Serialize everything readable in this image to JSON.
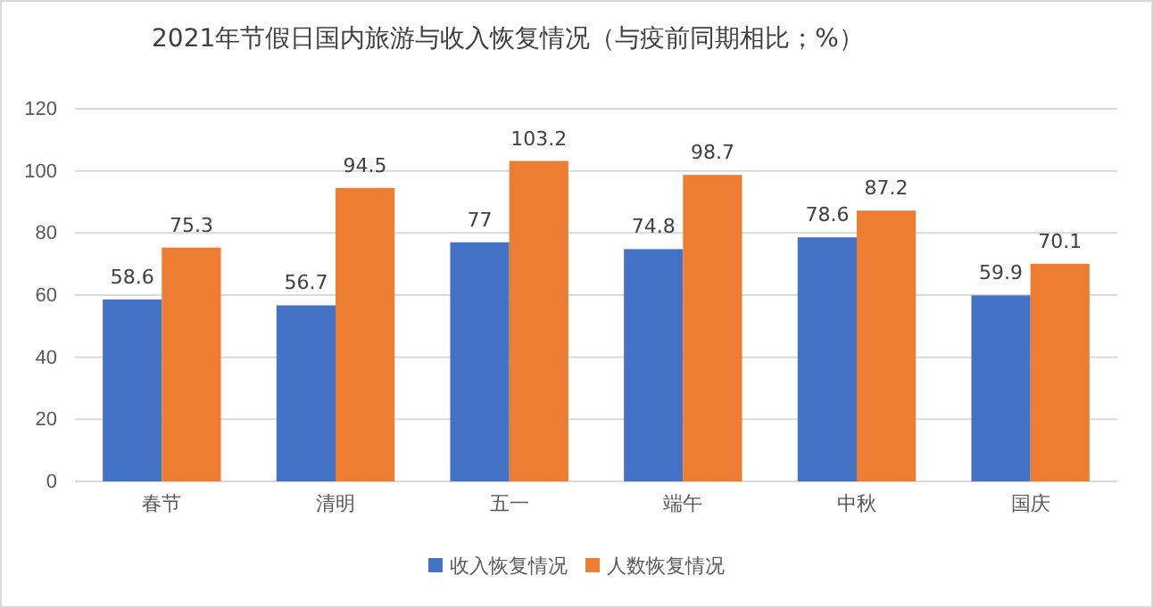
{
  "chart_data": {
    "type": "bar",
    "title": "2021年节假日国内旅游与收入恢复情况（与疫前同期相比；%）",
    "categories": [
      "春节",
      "清明",
      "五一",
      "端午",
      "中秋",
      "国庆"
    ],
    "series": [
      {
        "name": "收入恢复情况",
        "color": "#4472c4",
        "values": [
          58.6,
          56.7,
          77,
          74.8,
          78.6,
          59.9
        ]
      },
      {
        "name": "人数恢复情况",
        "color": "#ed7d31",
        "values": [
          75.3,
          94.5,
          103.2,
          98.7,
          87.2,
          70.1
        ]
      }
    ],
    "ylim": [
      0,
      120
    ],
    "yticks": [
      0,
      20,
      40,
      60,
      80,
      100,
      120
    ],
    "grid": "y",
    "legend": "bottom",
    "data_labels": true
  }
}
